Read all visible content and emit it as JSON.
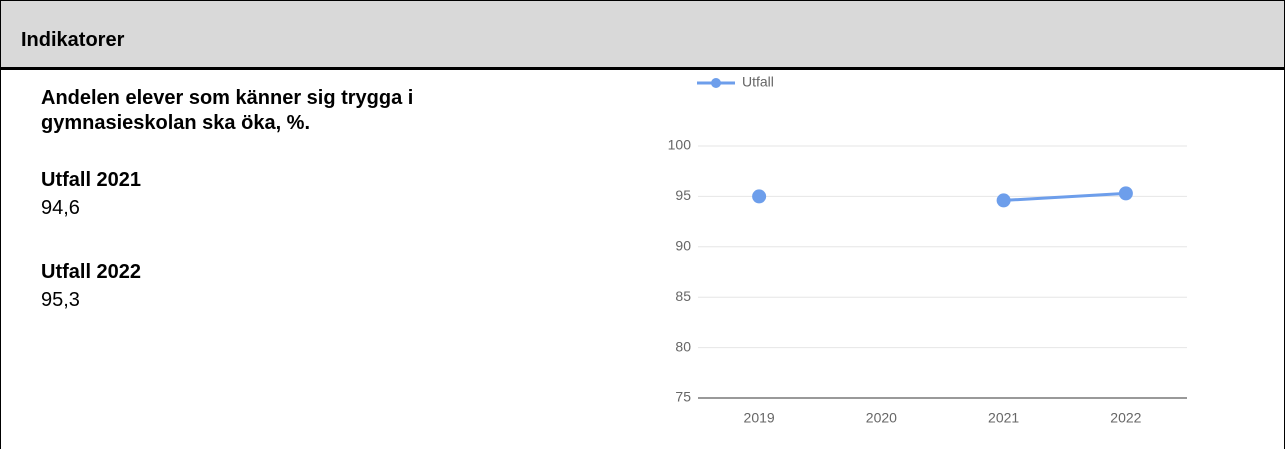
{
  "header": {
    "title": "Indikatorer"
  },
  "indicator": {
    "title": "Andelen elever som känner sig trygga i gymnasieskolan ska öka, %.",
    "outcomes": [
      {
        "label": "Utfall 2021",
        "value": "94,6"
      },
      {
        "label": "Utfall 2022",
        "value": "95,3"
      }
    ]
  },
  "chart_data": {
    "type": "line",
    "categories": [
      "2019",
      "2020",
      "2021",
      "2022"
    ],
    "series": [
      {
        "name": "Utfall",
        "color": "#6d9eeb",
        "values": [
          95,
          null,
          94.6,
          95.3
        ]
      }
    ],
    "ylim": [
      75,
      100
    ],
    "yticks": [
      75,
      80,
      85,
      90,
      95,
      100
    ],
    "grid": true,
    "legend": "top"
  }
}
